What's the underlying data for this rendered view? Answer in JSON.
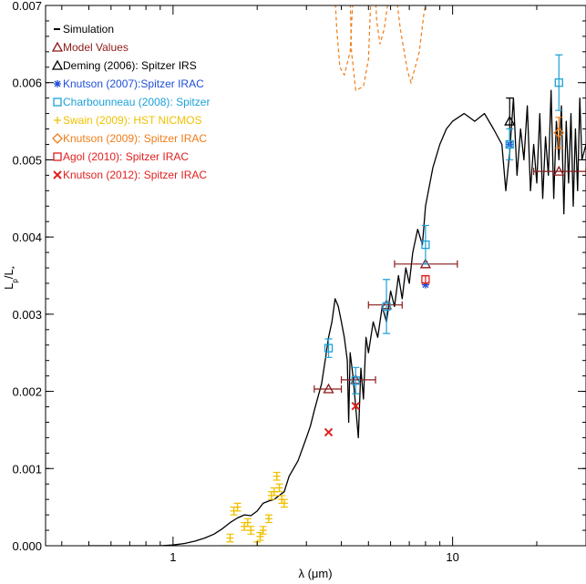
{
  "chart_data": {
    "type": "scatter",
    "xscale": "log",
    "xlim": [
      0.35,
      30
    ],
    "ylim": [
      0,
      0.007
    ],
    "xlabel": "λ (μm)",
    "ylabel": "Lp/L*",
    "ylabel_main": "L",
    "ylabel_sub1": "p",
    "ylabel_slash": "/L",
    "ylabel_sub2": "*",
    "xticks": [
      {
        "v": 1,
        "label": "1"
      },
      {
        "v": 10,
        "label": "10"
      }
    ],
    "yticks": [
      {
        "v": 0,
        "label": "0.000"
      },
      {
        "v": 0.001,
        "label": "0.001"
      },
      {
        "v": 0.002,
        "label": "0.002"
      },
      {
        "v": 0.003,
        "label": "0.003"
      },
      {
        "v": 0.004,
        "label": "0.004"
      },
      {
        "v": 0.005,
        "label": "0.005"
      },
      {
        "v": 0.006,
        "label": "0.006"
      },
      {
        "v": 0.007,
        "label": "0.007"
      }
    ],
    "legend": [
      {
        "label": "Simulation",
        "marker": "dash",
        "color": "#000000",
        "text_color": "#000000"
      },
      {
        "label": "Model Values",
        "marker": "triangle",
        "color": "#8b1a1a",
        "text_color": "#8b1a1a"
      },
      {
        "label": "Deming (2006): Spitzer IRS",
        "marker": "triangle",
        "color": "#000000",
        "text_color": "#000000"
      },
      {
        "label": "Knutson (2007):Spitzer IRAC",
        "marker": "asterisk",
        "color": "#1f4fd8",
        "text_color": "#1f4fd8"
      },
      {
        "label": "Charbounneau (2008): Spitzer",
        "marker": "square",
        "color": "#1ca0d8",
        "text_color": "#1ca0d8"
      },
      {
        "label": "Swain (2009): HST NICMOS",
        "marker": "plus",
        "color": "#f0c000",
        "text_color": "#f0c000"
      },
      {
        "label": "Knutson (2009): Spitzer IRAC",
        "marker": "diamond",
        "color": "#ef7d1a",
        "text_color": "#ef7d1a"
      },
      {
        "label": "Agol (2010): Spitzer IRAC",
        "marker": "square",
        "color": "#e0201f",
        "text_color": "#e0201f"
      },
      {
        "label": "Knutson (2012): Spitzer IRAC",
        "marker": "x",
        "color": "#e0201f",
        "text_color": "#e0201f"
      }
    ],
    "series": [
      {
        "name": "Simulation",
        "kind": "line",
        "color": "#000000",
        "points": [
          [
            0.5,
            0
          ],
          [
            0.7,
            0
          ],
          [
            0.9,
            0
          ],
          [
            1.0,
            1e-05
          ],
          [
            1.1,
            3e-05
          ],
          [
            1.2,
            6e-05
          ],
          [
            1.3,
            0.0001
          ],
          [
            1.4,
            0.00015
          ],
          [
            1.5,
            0.00022
          ],
          [
            1.6,
            0.0003
          ],
          [
            1.7,
            0.00036
          ],
          [
            1.8,
            0.0004
          ],
          [
            1.9,
            0.00039
          ],
          [
            2.0,
            0.00045
          ],
          [
            2.1,
            0.00055
          ],
          [
            2.2,
            0.00058
          ],
          [
            2.3,
            0.0006
          ],
          [
            2.5,
            0.0007
          ],
          [
            2.6,
            0.0009
          ],
          [
            2.8,
            0.0011
          ],
          [
            3.0,
            0.0014
          ],
          [
            3.1,
            0.00155
          ],
          [
            3.2,
            0.00175
          ],
          [
            3.4,
            0.0021
          ],
          [
            3.5,
            0.0024
          ],
          [
            3.6,
            0.0027
          ],
          [
            3.7,
            0.0029
          ],
          [
            3.8,
            0.0032
          ],
          [
            3.9,
            0.0031
          ],
          [
            4.0,
            0.0029
          ],
          [
            4.1,
            0.0027
          ],
          [
            4.2,
            0.0024
          ],
          [
            4.25,
            0.0016
          ],
          [
            4.3,
            0.0025
          ],
          [
            4.4,
            0.0022
          ],
          [
            4.5,
            0.0018
          ],
          [
            4.6,
            0.0014
          ],
          [
            4.7,
            0.0023
          ],
          [
            4.8,
            0.0019
          ],
          [
            4.9,
            0.0027
          ],
          [
            5.0,
            0.0025
          ],
          [
            5.2,
            0.0029
          ],
          [
            5.4,
            0.0027
          ],
          [
            5.6,
            0.0031
          ],
          [
            5.8,
            0.0029
          ],
          [
            6.0,
            0.0033
          ],
          [
            6.2,
            0.0031
          ],
          [
            6.4,
            0.0035
          ],
          [
            6.6,
            0.0032
          ],
          [
            6.8,
            0.0036
          ],
          [
            7.0,
            0.0034
          ],
          [
            7.2,
            0.0038
          ],
          [
            7.5,
            0.0041
          ],
          [
            7.8,
            0.0039
          ],
          [
            8.0,
            0.0044
          ],
          [
            8.5,
            0.0049
          ],
          [
            9.0,
            0.0052
          ],
          [
            9.5,
            0.0054
          ],
          [
            10,
            0.0055
          ],
          [
            11,
            0.0056
          ],
          [
            12,
            0.0055
          ],
          [
            13,
            0.0056
          ],
          [
            14,
            0.0054
          ],
          [
            15,
            0.0052
          ],
          [
            15.5,
            0.0046
          ],
          [
            16,
            0.0051
          ],
          [
            16.5,
            0.0058
          ],
          [
            17,
            0.0048
          ],
          [
            17.5,
            0.0054
          ],
          [
            18,
            0.005
          ],
          [
            18.5,
            0.0057
          ],
          [
            19,
            0.0046
          ],
          [
            19.5,
            0.0052
          ],
          [
            20,
            0.0047
          ],
          [
            20.5,
            0.0056
          ],
          [
            21,
            0.0045
          ],
          [
            21.5,
            0.0053
          ],
          [
            22,
            0.0048
          ],
          [
            22.5,
            0.0059
          ],
          [
            23,
            0.0045
          ],
          [
            23.5,
            0.0055
          ],
          [
            24,
            0.005
          ],
          [
            24.5,
            0.0057
          ],
          [
            25,
            0.0043
          ],
          [
            25.5,
            0.0055
          ],
          [
            26,
            0.0047
          ],
          [
            26.5,
            0.0056
          ],
          [
            27,
            0.0044
          ],
          [
            27.5,
            0.0054
          ],
          [
            28,
            0.0046
          ],
          [
            28.5,
            0.0058
          ],
          [
            29,
            0.005
          ],
          [
            30,
            0.0052
          ]
        ]
      },
      {
        "name": "Model Values",
        "kind": "points",
        "marker": "triangle",
        "color": "#8b1a1a",
        "points": [
          {
            "x": 3.6,
            "y": 0.00203,
            "xerr": [
              3.2,
              4.0
            ]
          },
          {
            "x": 4.5,
            "y": 0.00215,
            "xerr": [
              4.0,
              5.3
            ]
          },
          {
            "x": 5.8,
            "y": 0.00312,
            "xerr": [
              5.0,
              6.6
            ]
          },
          {
            "x": 8.0,
            "y": 0.00365,
            "xerr": [
              6.2,
              10.4
            ]
          },
          {
            "x": 24.0,
            "y": 0.00485,
            "xerr": [
              19.5,
              30
            ]
          }
        ]
      },
      {
        "name": "Deming (2006): Spitzer IRS",
        "kind": "points",
        "marker": "triangle",
        "color": "#000000",
        "points": [
          {
            "x": 16.0,
            "y": 0.0055,
            "yerr": 0.0003
          }
        ]
      },
      {
        "name": "Knutson (2007):Spitzer IRAC",
        "kind": "points",
        "marker": "asterisk",
        "color": "#1f4fd8",
        "points": [
          {
            "x": 8.0,
            "y": 0.00338
          },
          {
            "x": 16.0,
            "y": 0.0052
          }
        ]
      },
      {
        "name": "Charbounneau (2008): Spitzer",
        "kind": "points",
        "marker": "square",
        "color": "#1ca0d8",
        "points": [
          {
            "x": 3.6,
            "y": 0.00256,
            "yerr": 0.00012
          },
          {
            "x": 4.5,
            "y": 0.00214,
            "yerr": 0.00017
          },
          {
            "x": 5.8,
            "y": 0.0031,
            "yerr": 0.00035
          },
          {
            "x": 8.0,
            "y": 0.0039,
            "yerr": 0.00025
          },
          {
            "x": 16.0,
            "y": 0.0052,
            "yerr": 0.0002
          },
          {
            "x": 24.0,
            "y": 0.006,
            "yerr": 0.00036
          }
        ]
      },
      {
        "name": "Swain (2009): HST NICMOS",
        "kind": "points",
        "marker": "plus",
        "color": "#f0c000",
        "points": [
          {
            "x": 1.55,
            "y": -5e-05,
            "yerr": 5e-05
          },
          {
            "x": 1.6,
            "y": 0.0001,
            "yerr": 5e-05
          },
          {
            "x": 1.65,
            "y": 0.00045,
            "yerr": 5e-05
          },
          {
            "x": 1.7,
            "y": 0.0005,
            "yerr": 5e-05
          },
          {
            "x": 1.8,
            "y": 0.00025,
            "yerr": 5e-05
          },
          {
            "x": 1.85,
            "y": 0.0003,
            "yerr": 5e-05
          },
          {
            "x": 1.9,
            "y": 0.0002,
            "yerr": 5e-05
          },
          {
            "x": 2.0,
            "y": 0.0,
            "yerr": 5e-05
          },
          {
            "x": 2.05,
            "y": 0.00012,
            "yerr": 5e-05
          },
          {
            "x": 2.1,
            "y": 0.0002,
            "yerr": 5e-05
          },
          {
            "x": 2.2,
            "y": 0.00035,
            "yerr": 5e-05
          },
          {
            "x": 2.25,
            "y": 0.00065,
            "yerr": 5e-05
          },
          {
            "x": 2.3,
            "y": 0.0007,
            "yerr": 5e-05
          },
          {
            "x": 2.35,
            "y": 0.0009,
            "yerr": 5e-05
          },
          {
            "x": 2.4,
            "y": 0.00075,
            "yerr": 5e-05
          },
          {
            "x": 2.45,
            "y": 0.0006,
            "yerr": 5e-05
          },
          {
            "x": 2.5,
            "y": 0.00055,
            "yerr": 5e-05
          }
        ]
      },
      {
        "name": "Knutson (2009): Spitzer IRAC",
        "kind": "points",
        "marker": "diamond",
        "color": "#ef7d1a",
        "points": [
          {
            "x": 24.0,
            "y": 0.00535,
            "yerr": 0.0002
          }
        ]
      },
      {
        "name": "Agol (2010): Spitzer IRAC",
        "kind": "points",
        "marker": "square",
        "color": "#e0201f",
        "points": [
          {
            "x": 8.0,
            "y": 0.00345,
            "yerr": 5e-05
          }
        ]
      },
      {
        "name": "Knutson (2012): Spitzer IRAC",
        "kind": "points",
        "marker": "x",
        "color": "#e0201f",
        "points": [
          {
            "x": 3.6,
            "y": 0.00147
          },
          {
            "x": 4.5,
            "y": 0.00181
          }
        ]
      },
      {
        "kind": "dashed",
        "color": "#ef7d1a",
        "curves": [
          [
            [
              3.8,
              0.0071
            ],
            [
              3.85,
              0.0067
            ],
            [
              3.95,
              0.0062
            ],
            [
              4.1,
              0.0061
            ],
            [
              4.3,
              0.0064
            ],
            [
              4.4,
              0.0071
            ]
          ],
          [
            [
              4.3,
              0.0071
            ],
            [
              4.35,
              0.0064
            ],
            [
              4.5,
              0.0059
            ],
            [
              4.8,
              0.00595
            ],
            [
              5.0,
              0.0063
            ],
            [
              5.1,
              0.0071
            ]
          ],
          [
            [
              5.3,
              0.0071
            ],
            [
              5.35,
              0.0068
            ],
            [
              5.5,
              0.0065
            ],
            [
              5.7,
              0.0067
            ],
            [
              5.9,
              0.0071
            ]
          ],
          [
            [
              6.3,
              0.0071
            ],
            [
              6.5,
              0.0067
            ],
            [
              6.9,
              0.00615
            ],
            [
              7.1,
              0.006
            ],
            [
              7.6,
              0.0064
            ],
            [
              7.9,
              0.0069
            ],
            [
              8.1,
              0.0071
            ]
          ]
        ]
      }
    ]
  }
}
